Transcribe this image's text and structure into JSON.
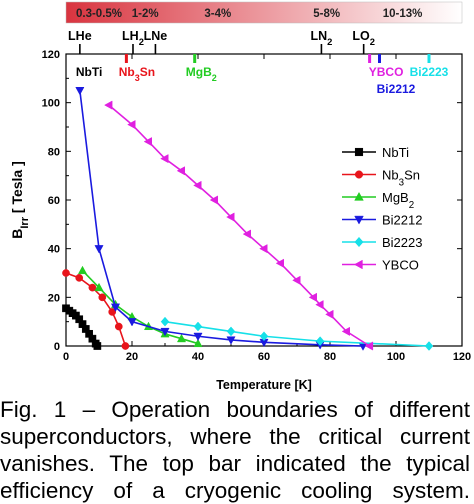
{
  "chart_data": {
    "type": "line",
    "xlabel": "Temperature [K]",
    "ylabel_main": "B",
    "ylabel_sub": "Irr",
    "ylabel_rest": " [ Tesla ]",
    "xlim": [
      0,
      120
    ],
    "ylim": [
      0,
      120
    ],
    "x_ticks": [
      0,
      20,
      40,
      60,
      80,
      100,
      120
    ],
    "y_ticks": [
      0,
      20,
      40,
      60,
      80,
      100,
      120
    ],
    "grid": false,
    "legend_position": "right",
    "efficiency_bar": {
      "labels": [
        "0.3-0.5%",
        "1-2%",
        "3-4%",
        "5-8%",
        "10-13%"
      ],
      "label_x": [
        10,
        24,
        46,
        79,
        102
      ],
      "gradient_start": "#d9343f",
      "gradient_end": "#ffffff"
    },
    "cryogens": [
      {
        "name": "LHe",
        "sub": "",
        "x": 4.2
      },
      {
        "name": "LH",
        "sub": "2",
        "x": 20.3
      },
      {
        "name": "LNe",
        "sub": "",
        "x": 27.1
      },
      {
        "name": "LN",
        "sub": "2",
        "x": 77.4
      },
      {
        "name": "LO",
        "sub": "2",
        "x": 90.2
      }
    ],
    "tc_markers": [
      {
        "name": "NbTi",
        "sub": "",
        "x": 9.5,
        "color": "#000000",
        "label_x": 7,
        "label_y": 113,
        "has_tick": false
      },
      {
        "name": "Nb",
        "sub": "3",
        "name2": "Sn",
        "x": 18.3,
        "color": "#e8141b",
        "label_x": 21.5,
        "label_y": 113,
        "has_tick": true
      },
      {
        "name": "MgB",
        "sub": "2",
        "x": 39,
        "color": "#22cc22",
        "label_x": 41,
        "label_y": 113,
        "has_tick": true
      },
      {
        "name": "YBCO",
        "sub": "",
        "x": 92,
        "color": "#e020e0",
        "label_x": 97,
        "label_y": 113,
        "has_tick": true
      },
      {
        "name": "Bi2212",
        "sub": "",
        "x": 95,
        "color": "#1a1adf",
        "label_x": 100,
        "label_y": 106,
        "has_tick": true
      },
      {
        "name": "Bi2223",
        "sub": "",
        "x": 110,
        "color": "#16e0e8",
        "label_x": 110,
        "label_y": 113,
        "has_tick": true
      }
    ],
    "series": [
      {
        "name": "NbTi",
        "sub": "",
        "color": "#000000",
        "marker": "square",
        "x": [
          0,
          1,
          2,
          3,
          4,
          5,
          6,
          7,
          8,
          9,
          9.5
        ],
        "y": [
          15.5,
          14.5,
          13.5,
          12.5,
          11,
          9,
          7,
          5,
          3,
          1,
          0
        ]
      },
      {
        "name": "Nb",
        "sub": "3",
        "name2": "Sn",
        "color": "#e8141b",
        "marker": "circle",
        "x": [
          0,
          4,
          8,
          11,
          14,
          16,
          18
        ],
        "y": [
          30,
          28,
          24,
          20,
          14,
          8,
          0
        ]
      },
      {
        "name": "MgB",
        "sub": "2",
        "color": "#22cc22",
        "marker": "triangle-up",
        "x": [
          5,
          10,
          15,
          20,
          25,
          30,
          35,
          40
        ],
        "y": [
          31,
          24,
          17,
          12,
          8,
          5,
          3,
          1
        ]
      },
      {
        "name": "Bi2212",
        "sub": "",
        "color": "#1a1adf",
        "marker": "triangle-down",
        "x": [
          4.2,
          10,
          15,
          20,
          30,
          40,
          50,
          60,
          77,
          90
        ],
        "y": [
          105,
          40,
          16,
          10,
          6,
          4,
          2.5,
          1.5,
          0.5,
          0
        ]
      },
      {
        "name": "Bi2223",
        "sub": "",
        "color": "#16e0e8",
        "marker": "diamond",
        "x": [
          30,
          40,
          50,
          60,
          77,
          110
        ],
        "y": [
          10,
          8,
          6,
          4,
          2,
          0
        ]
      },
      {
        "name": "YBCO",
        "sub": "",
        "color": "#e020e0",
        "marker": "triangle-left",
        "x": [
          13,
          20,
          25,
          30,
          35,
          40,
          45,
          50,
          55,
          60,
          65,
          70,
          75,
          77,
          80,
          85,
          92
        ],
        "y": [
          99,
          91,
          84,
          77,
          72,
          66,
          60,
          53,
          46,
          40,
          34,
          27,
          20,
          17,
          13,
          6,
          0
        ]
      }
    ]
  },
  "caption": {
    "lines": [
      "Fig.   1  –  Operation   boundaries   of   different",
      "superconductors,  where  the  critical  current",
      "vanishes.  The  top  bar  indicated  the  typical",
      "efficiency   of   a   cryogenic   cooling   system."
    ]
  }
}
